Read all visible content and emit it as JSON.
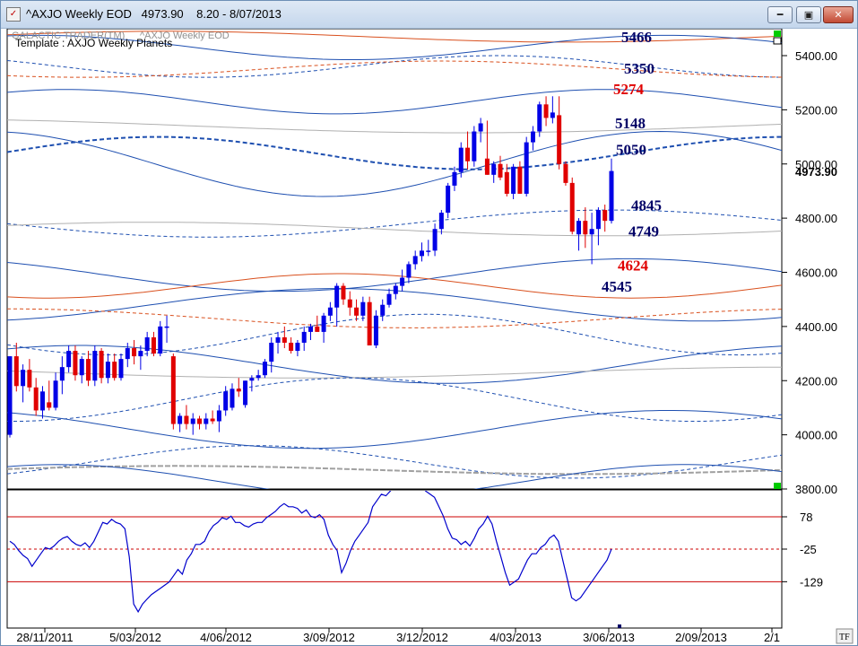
{
  "window": {
    "title": "^AXJO Weekly EOD   4973.90    8.20 - 8/07/2013",
    "header_label": "GALACTIC TRADER(TM)",
    "header_series": "^AXJO Weekly EOD",
    "template_label": "Template : AXJO Weekly Planets",
    "corner_label": "TF",
    "app_icon": "chart-app-icon",
    "minimize_glyph": "━",
    "maximize_glyph": "▣",
    "close_glyph": "✕"
  },
  "chart_data": [
    {
      "type": "candlestick",
      "symbol": "^AXJO",
      "timeframe": "Weekly",
      "last_price_label": "4973.90",
      "ylim": [
        3800,
        5480
      ],
      "y_ticks": [
        "5400.00",
        "5200.00",
        "5000.00",
        "4800.00",
        "4600.00",
        "4400.00",
        "4200.00",
        "4000.00",
        "3800.00"
      ],
      "x_ticks": [
        "28/11/2011",
        "5/03/2012",
        "4/06/2012",
        "3/09/2012",
        "3/12/2012",
        "4/03/2013",
        "3/06/2013",
        "2/09/2013",
        "2/1"
      ],
      "level_labels": [
        {
          "text": "5466",
          "value": 5466,
          "color": "#000066"
        },
        {
          "text": "5350",
          "value": 5350,
          "color": "#000066"
        },
        {
          "text": "5274",
          "value": 5274,
          "color": "#e00000"
        },
        {
          "text": "5148",
          "value": 5148,
          "color": "#000066"
        },
        {
          "text": "5050",
          "value": 5050,
          "color": "#000066"
        },
        {
          "text": "4845",
          "value": 4845,
          "color": "#000066"
        },
        {
          "text": "4749",
          "value": 4749,
          "color": "#000066"
        },
        {
          "text": "4624",
          "value": 4624,
          "color": "#e00000"
        },
        {
          "text": "4545",
          "value": 4545,
          "color": "#000066"
        }
      ],
      "colors": {
        "up": "#0000e6",
        "down": "#e00000"
      },
      "candles": [
        {
          "o": 4000,
          "h": 4290,
          "l": 3990,
          "c": 4290
        },
        {
          "o": 4290,
          "h": 4340,
          "l": 4160,
          "c": 4180
        },
        {
          "o": 4180,
          "h": 4260,
          "l": 4120,
          "c": 4240
        },
        {
          "o": 4240,
          "h": 4280,
          "l": 4160,
          "c": 4175
        },
        {
          "o": 4175,
          "h": 4210,
          "l": 4070,
          "c": 4090
        },
        {
          "o": 4090,
          "h": 4180,
          "l": 4060,
          "c": 4160
        },
        {
          "o": 4120,
          "h": 4200,
          "l": 4090,
          "c": 4100
        },
        {
          "o": 4100,
          "h": 4230,
          "l": 4090,
          "c": 4200
        },
        {
          "o": 4200,
          "h": 4290,
          "l": 4150,
          "c": 4250
        },
        {
          "o": 4250,
          "h": 4330,
          "l": 4230,
          "c": 4310
        },
        {
          "o": 4310,
          "h": 4330,
          "l": 4200,
          "c": 4220
        },
        {
          "o": 4220,
          "h": 4290,
          "l": 4190,
          "c": 4280
        },
        {
          "o": 4280,
          "h": 4310,
          "l": 4180,
          "c": 4200
        },
        {
          "o": 4200,
          "h": 4330,
          "l": 4180,
          "c": 4310
        },
        {
          "o": 4310,
          "h": 4320,
          "l": 4190,
          "c": 4210
        },
        {
          "o": 4210,
          "h": 4300,
          "l": 4190,
          "c": 4270
        },
        {
          "o": 4270,
          "h": 4300,
          "l": 4200,
          "c": 4210
        },
        {
          "o": 4210,
          "h": 4300,
          "l": 4200,
          "c": 4280
        },
        {
          "o": 4280,
          "h": 4340,
          "l": 4250,
          "c": 4320
        },
        {
          "o": 4320,
          "h": 4350,
          "l": 4260,
          "c": 4290
        },
        {
          "o": 4290,
          "h": 4330,
          "l": 4240,
          "c": 4310
        },
        {
          "o": 4310,
          "h": 4380,
          "l": 4290,
          "c": 4360
        },
        {
          "o": 4360,
          "h": 4380,
          "l": 4290,
          "c": 4300
        },
        {
          "o": 4300,
          "h": 4420,
          "l": 4290,
          "c": 4400
        },
        {
          "o": 4400,
          "h": 4440,
          "l": 4340,
          "c": 4400
        },
        {
          "o": 4290,
          "h": 4300,
          "l": 4020,
          "c": 4040
        },
        {
          "o": 4040,
          "h": 4080,
          "l": 4010,
          "c": 4070
        },
        {
          "o": 4070,
          "h": 4110,
          "l": 4020,
          "c": 4040
        },
        {
          "o": 4040,
          "h": 4080,
          "l": 4000,
          "c": 4060
        },
        {
          "o": 4060,
          "h": 4070,
          "l": 4020,
          "c": 4040
        },
        {
          "o": 4040,
          "h": 4080,
          "l": 4020,
          "c": 4060
        },
        {
          "o": 4060,
          "h": 4090,
          "l": 4040,
          "c": 4050
        },
        {
          "o": 4050,
          "h": 4110,
          "l": 4010,
          "c": 4090
        },
        {
          "o": 4090,
          "h": 4180,
          "l": 4070,
          "c": 4160
        },
        {
          "o": 4100,
          "h": 4190,
          "l": 4090,
          "c": 4170
        },
        {
          "o": 4170,
          "h": 4210,
          "l": 4140,
          "c": 4160
        },
        {
          "o": 4110,
          "h": 4200,
          "l": 4100,
          "c": 4200
        },
        {
          "o": 4200,
          "h": 4220,
          "l": 4160,
          "c": 4210
        },
        {
          "o": 4210,
          "h": 4240,
          "l": 4200,
          "c": 4220
        },
        {
          "o": 4220,
          "h": 4280,
          "l": 4210,
          "c": 4270
        },
        {
          "o": 4270,
          "h": 4360,
          "l": 4230,
          "c": 4340
        },
        {
          "o": 4340,
          "h": 4380,
          "l": 4300,
          "c": 4360
        },
        {
          "o": 4360,
          "h": 4400,
          "l": 4320,
          "c": 4340
        },
        {
          "o": 4340,
          "h": 4360,
          "l": 4300,
          "c": 4310
        },
        {
          "o": 4310,
          "h": 4350,
          "l": 4290,
          "c": 4340
        },
        {
          "o": 4340,
          "h": 4400,
          "l": 4310,
          "c": 4380
        },
        {
          "o": 4380,
          "h": 4410,
          "l": 4350,
          "c": 4400
        },
        {
          "o": 4400,
          "h": 4440,
          "l": 4380,
          "c": 4380
        },
        {
          "o": 4380,
          "h": 4450,
          "l": 4340,
          "c": 4440
        },
        {
          "o": 4440,
          "h": 4490,
          "l": 4420,
          "c": 4470
        },
        {
          "o": 4470,
          "h": 4560,
          "l": 4400,
          "c": 4550
        },
        {
          "o": 4550,
          "h": 4560,
          "l": 4480,
          "c": 4500
        },
        {
          "o": 4500,
          "h": 4530,
          "l": 4440,
          "c": 4470
        },
        {
          "o": 4470,
          "h": 4500,
          "l": 4420,
          "c": 4440
        },
        {
          "o": 4440,
          "h": 4510,
          "l": 4420,
          "c": 4490
        },
        {
          "o": 4490,
          "h": 4510,
          "l": 4330,
          "c": 4330
        },
        {
          "o": 4330,
          "h": 4460,
          "l": 4320,
          "c": 4440
        },
        {
          "o": 4440,
          "h": 4500,
          "l": 4420,
          "c": 4480
        },
        {
          "o": 4480,
          "h": 4540,
          "l": 4470,
          "c": 4520
        },
        {
          "o": 4520,
          "h": 4560,
          "l": 4500,
          "c": 4550
        },
        {
          "o": 4550,
          "h": 4610,
          "l": 4530,
          "c": 4580
        },
        {
          "o": 4580,
          "h": 4640,
          "l": 4560,
          "c": 4630
        },
        {
          "o": 4630,
          "h": 4680,
          "l": 4610,
          "c": 4660
        },
        {
          "o": 4660,
          "h": 4710,
          "l": 4640,
          "c": 4680
        },
        {
          "o": 4680,
          "h": 4720,
          "l": 4660,
          "c": 4680
        },
        {
          "o": 4680,
          "h": 4780,
          "l": 4660,
          "c": 4760
        },
        {
          "o": 4760,
          "h": 4830,
          "l": 4740,
          "c": 4820
        },
        {
          "o": 4820,
          "h": 4930,
          "l": 4800,
          "c": 4920
        },
        {
          "o": 4920,
          "h": 4990,
          "l": 4900,
          "c": 4970
        },
        {
          "o": 4970,
          "h": 5080,
          "l": 4950,
          "c": 5060
        },
        {
          "o": 5060,
          "h": 5120,
          "l": 4980,
          "c": 5010
        },
        {
          "o": 5010,
          "h": 5140,
          "l": 4990,
          "c": 5120
        },
        {
          "o": 5120,
          "h": 5170,
          "l": 5080,
          "c": 5150
        },
        {
          "o": 5020,
          "h": 5160,
          "l": 4960,
          "c": 4960
        },
        {
          "o": 4960,
          "h": 5010,
          "l": 4930,
          "c": 5000
        },
        {
          "o": 5000,
          "h": 5030,
          "l": 4940,
          "c": 4950
        },
        {
          "o": 4970,
          "h": 5000,
          "l": 4880,
          "c": 4890
        },
        {
          "o": 4890,
          "h": 5000,
          "l": 4870,
          "c": 4990
        },
        {
          "o": 4990,
          "h": 5010,
          "l": 4890,
          "c": 4890
        },
        {
          "o": 4890,
          "h": 5100,
          "l": 4880,
          "c": 5080
        },
        {
          "o": 5080,
          "h": 5140,
          "l": 5050,
          "c": 5120
        },
        {
          "o": 5120,
          "h": 5230,
          "l": 5100,
          "c": 5220
        },
        {
          "o": 5220,
          "h": 5250,
          "l": 5140,
          "c": 5170
        },
        {
          "o": 5170,
          "h": 5250,
          "l": 5150,
          "c": 5190
        },
        {
          "o": 5180,
          "h": 5250,
          "l": 4980,
          "c": 5000
        },
        {
          "o": 5000,
          "h": 5010,
          "l": 4920,
          "c": 4930
        },
        {
          "o": 4930,
          "h": 4950,
          "l": 4740,
          "c": 4750
        },
        {
          "o": 4740,
          "h": 4800,
          "l": 4680,
          "c": 4790
        },
        {
          "o": 4790,
          "h": 4840,
          "l": 4690,
          "c": 4740
        },
        {
          "o": 4740,
          "h": 4820,
          "l": 4630,
          "c": 4760
        },
        {
          "o": 4760,
          "h": 4840,
          "l": 4700,
          "c": 4830
        },
        {
          "o": 4830,
          "h": 4850,
          "l": 4750,
          "c": 4790
        },
        {
          "o": 4790,
          "h": 5020,
          "l": 4780,
          "c": 4974
        }
      ]
    },
    {
      "type": "line",
      "name": "oscillator",
      "ylim": [
        -225,
        198
      ],
      "y_ticks": [
        "78",
        "-25",
        "-129"
      ],
      "reference_levels": [
        78,
        -25,
        -129
      ],
      "values": [
        0,
        -10,
        -30,
        -45,
        -55,
        -80,
        -60,
        -40,
        -20,
        -25,
        -15,
        0,
        10,
        15,
        0,
        -10,
        -15,
        -5,
        -20,
        0,
        30,
        60,
        55,
        70,
        60,
        55,
        40,
        -50,
        -200,
        -225,
        -200,
        -185,
        -170,
        -160,
        -150,
        -140,
        -130,
        -110,
        -90,
        -105,
        -60,
        -40,
        -10,
        -10,
        0,
        30,
        50,
        60,
        75,
        70,
        80,
        60,
        60,
        50,
        45,
        55,
        60,
        60,
        75,
        85,
        95,
        110,
        120,
        110,
        110,
        105,
        90,
        100,
        80,
        75,
        85,
        70,
        20,
        -10,
        -30,
        -100,
        -70,
        -30,
        0,
        20,
        40,
        60,
        110,
        130,
        150,
        145,
        160,
        175,
        180,
        195,
        198,
        185,
        185,
        175,
        160,
        150,
        140,
        110,
        80,
        40,
        10,
        5,
        -10,
        0,
        -15,
        10,
        40,
        55,
        80,
        55,
        0,
        -50,
        -100,
        -140,
        -130,
        -120,
        -90,
        -60,
        -40,
        -40,
        -20,
        -10,
        10,
        20,
        0,
        -60,
        -120,
        -180,
        -190,
        -180,
        -160,
        -140,
        -120,
        -100,
        -80,
        -60,
        -25
      ]
    }
  ]
}
